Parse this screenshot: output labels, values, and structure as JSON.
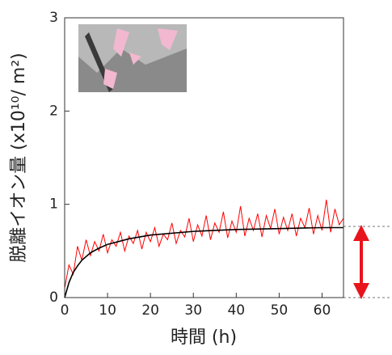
{
  "chart_data": {
    "type": "line",
    "xlabel": "時間 (h)",
    "ylabel": "脱離イオン量 (x10¹⁰/ m²)",
    "xlim": [
      0,
      65
    ],
    "ylim": [
      0,
      3
    ],
    "xticks": [
      0,
      10,
      20,
      30,
      40,
      50,
      60
    ],
    "yticks": [
      0,
      1,
      2,
      3
    ],
    "series": [
      {
        "color": "#ff0000",
        "x": [
          0,
          1,
          2,
          3,
          4,
          5,
          6,
          7,
          8,
          9,
          10,
          11,
          12,
          13,
          14,
          15,
          16,
          17,
          18,
          19,
          20,
          21,
          22,
          23,
          24,
          25,
          26,
          27,
          28,
          29,
          30,
          31,
          32,
          33,
          34,
          35,
          36,
          37,
          38,
          39,
          40,
          41,
          42,
          43,
          44,
          45,
          46,
          47,
          48,
          49,
          50,
          51,
          52,
          53,
          54,
          55,
          56,
          57,
          58,
          59,
          60,
          61,
          62,
          63,
          64,
          65
        ],
        "values": [
          0.1,
          0.35,
          0.25,
          0.55,
          0.4,
          0.62,
          0.45,
          0.6,
          0.5,
          0.68,
          0.48,
          0.62,
          0.55,
          0.7,
          0.5,
          0.66,
          0.58,
          0.72,
          0.52,
          0.7,
          0.6,
          0.75,
          0.55,
          0.68,
          0.62,
          0.8,
          0.58,
          0.72,
          0.65,
          0.85,
          0.6,
          0.78,
          0.66,
          0.88,
          0.62,
          0.8,
          0.7,
          0.92,
          0.64,
          0.82,
          0.7,
          0.98,
          0.66,
          0.85,
          0.72,
          0.9,
          0.65,
          0.88,
          0.74,
          0.95,
          0.68,
          0.86,
          0.72,
          0.9,
          0.66,
          0.85,
          0.75,
          0.96,
          0.68,
          0.88,
          0.72,
          1.05,
          0.7,
          0.95,
          0.78,
          0.85
        ]
      },
      {
        "color": "#000000",
        "x": [
          0,
          1,
          2,
          3,
          4,
          6,
          8,
          10,
          15,
          20,
          30,
          40,
          50,
          60,
          65
        ],
        "values": [
          0,
          0.16,
          0.27,
          0.34,
          0.4,
          0.48,
          0.53,
          0.57,
          0.63,
          0.67,
          0.71,
          0.73,
          0.74,
          0.75,
          0.75
        ]
      }
    ]
  }
}
